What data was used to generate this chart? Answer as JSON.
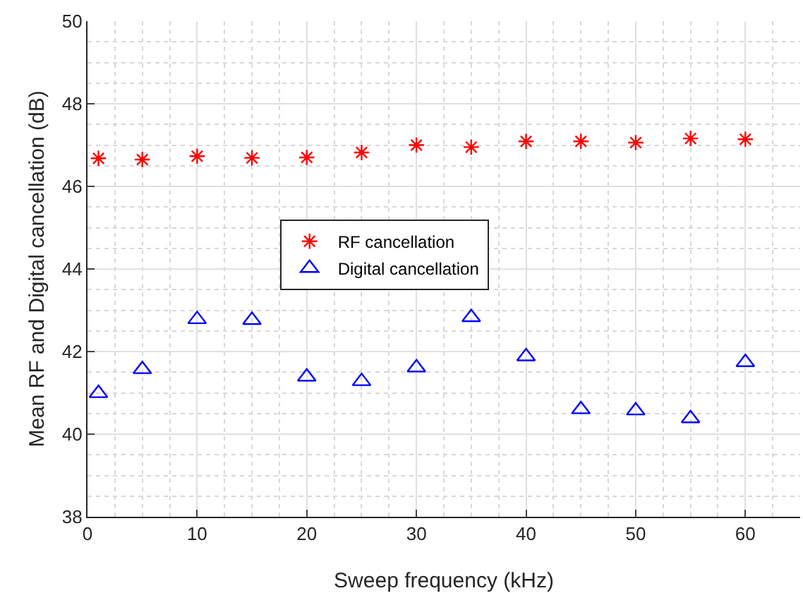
{
  "chart_data": {
    "type": "scatter",
    "xlabel": "Sweep frequency (kHz)",
    "ylabel": "Mean RF and Digital cancellation (dB)",
    "x": [
      1,
      5,
      10,
      15,
      20,
      25,
      30,
      35,
      40,
      45,
      50,
      55,
      60
    ],
    "series": [
      {
        "name": "RF cancellation",
        "color": "#ff0000",
        "marker": "cross",
        "values": [
          46.68,
          46.65,
          46.73,
          46.69,
          46.7,
          46.82,
          47.0,
          46.95,
          47.09,
          47.09,
          47.06,
          47.16,
          47.14
        ]
      },
      {
        "name": "Digital cancellation",
        "color": "#0000ff",
        "marker": "triangle",
        "values": [
          40.99,
          41.57,
          42.78,
          42.76,
          41.39,
          41.28,
          41.61,
          42.83,
          41.88,
          40.6,
          40.57,
          40.38,
          41.74
        ]
      }
    ],
    "xlim": [
      0,
      65
    ],
    "xticks": [
      0,
      10,
      20,
      30,
      40,
      50,
      60
    ],
    "ylim": [
      38,
      50
    ],
    "yticks": [
      38,
      40,
      42,
      44,
      46,
      48,
      50
    ],
    "grid": true,
    "legend": "center"
  }
}
